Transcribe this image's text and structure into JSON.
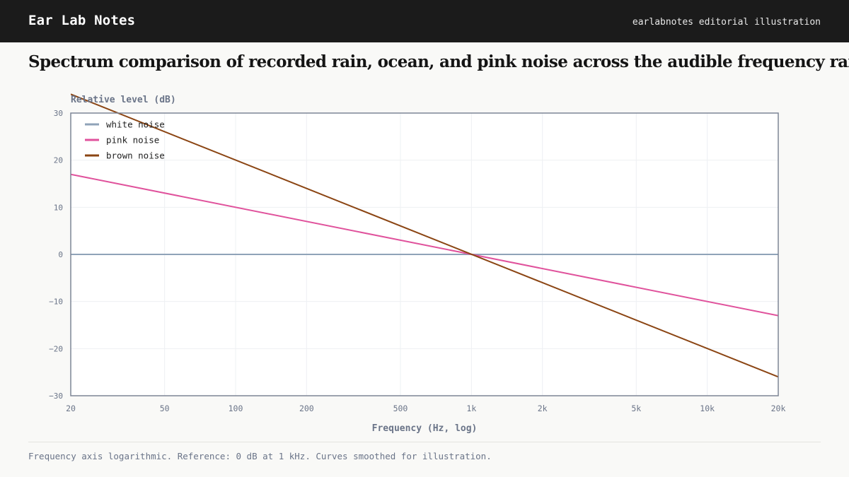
{
  "header": {
    "brand": "Ear Lab Notes",
    "tagline": "earlabnotes editorial illustration"
  },
  "headline": "Spectrum comparison of recorded rain, ocean, and pink noise across the audible frequency range.",
  "caption": "Frequency axis logarithmic. Reference: 0 dB at 1 kHz. Curves smoothed for illustration.",
  "chart_data": {
    "type": "line",
    "title": "",
    "xlabel": "Frequency (Hz, log)",
    "ylabel": "Relative level (dB)",
    "x_scale": "log",
    "xlim": [
      20,
      20000
    ],
    "ylim": [
      -30,
      30
    ],
    "x_ticks": [
      {
        "value": 20,
        "label": "20"
      },
      {
        "value": 50,
        "label": "50"
      },
      {
        "value": 100,
        "label": "100"
      },
      {
        "value": 200,
        "label": "200"
      },
      {
        "value": 500,
        "label": "500"
      },
      {
        "value": 1000,
        "label": "1k"
      },
      {
        "value": 2000,
        "label": "2k"
      },
      {
        "value": 5000,
        "label": "5k"
      },
      {
        "value": 10000,
        "label": "10k"
      },
      {
        "value": 20000,
        "label": "20k"
      }
    ],
    "y_ticks": [
      {
        "value": 30,
        "label": "30"
      },
      {
        "value": 20,
        "label": "20"
      },
      {
        "value": 10,
        "label": "10"
      },
      {
        "value": 0,
        "label": "0"
      },
      {
        "value": -10,
        "label": "−10"
      },
      {
        "value": -20,
        "label": "−20"
      },
      {
        "value": -30,
        "label": "−30"
      }
    ],
    "grid": true,
    "legend_position": "top-left",
    "series": [
      {
        "name": "white noise",
        "color": "#8fa3b8",
        "x": [
          20,
          20000
        ],
        "y": [
          0,
          0
        ]
      },
      {
        "name": "pink noise",
        "color": "#e0529c",
        "x": [
          20,
          20000
        ],
        "y": [
          17,
          -13
        ]
      },
      {
        "name": "brown noise",
        "color": "#8b4513",
        "x": [
          20,
          20000
        ],
        "y": [
          34,
          -26
        ]
      }
    ]
  }
}
